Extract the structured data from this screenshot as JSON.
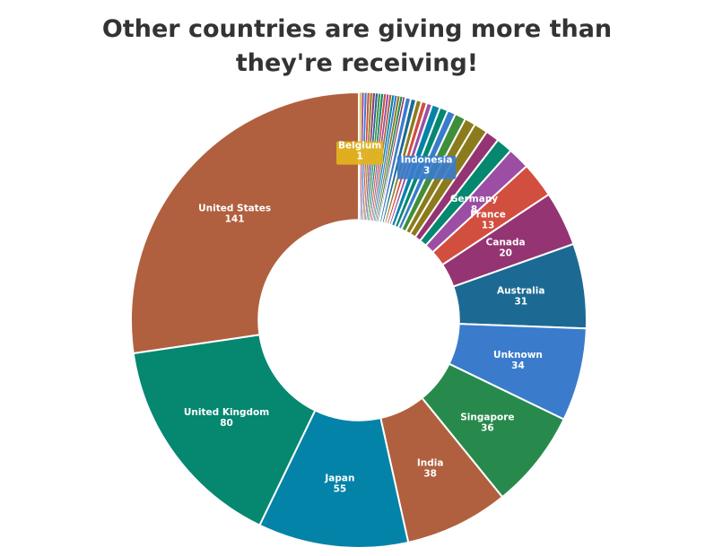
{
  "chart_data": {
    "type": "pie",
    "title": "Other countries are giving more than they're receiving!",
    "slices": [
      {
        "label": "United States",
        "value": 141,
        "color": "#b0603f",
        "show_label": true
      },
      {
        "label": "United Kingdom",
        "value": 80,
        "color": "#058770",
        "show_label": true
      },
      {
        "label": "Japan",
        "value": 55,
        "color": "#0383a8",
        "show_label": true
      },
      {
        "label": "India",
        "value": 38,
        "color": "#b0603f",
        "show_label": true
      },
      {
        "label": "Singapore",
        "value": 36,
        "color": "#278a4c",
        "show_label": true
      },
      {
        "label": "Unknown",
        "value": 34,
        "color": "#3a7ccb",
        "show_label": true
      },
      {
        "label": "Australia",
        "value": 31,
        "color": "#1c6a93",
        "show_label": true
      },
      {
        "label": "Canada",
        "value": 20,
        "color": "#943472",
        "show_label": true
      },
      {
        "label": "France",
        "value": 13,
        "color": "#d24e3e",
        "show_label": true
      },
      {
        "label": "Germany",
        "value": 8,
        "color": "#9b4ea4",
        "show_label": true
      },
      {
        "label": "",
        "value": 6,
        "color": "#058770",
        "show_label": false
      },
      {
        "label": "",
        "value": 5,
        "color": "#943472",
        "show_label": false
      },
      {
        "label": "",
        "value": 5,
        "color": "#8c7b1c",
        "show_label": false
      },
      {
        "label": "",
        "value": 4,
        "color": "#8c7b1c",
        "show_label": false
      },
      {
        "label": "",
        "value": 4,
        "color": "#3f8f3a",
        "show_label": false
      },
      {
        "label": "Indonesia",
        "value": 3,
        "color": "#3a7ccb",
        "show_label": true
      },
      {
        "label": "",
        "value": 3,
        "color": "#058770",
        "show_label": false
      },
      {
        "label": "",
        "value": 3,
        "color": "#0383a8",
        "show_label": false
      },
      {
        "label": "",
        "value": 2,
        "color": "#9b4ea4",
        "show_label": false
      },
      {
        "label": "",
        "value": 2,
        "color": "#d24e3e",
        "show_label": false
      },
      {
        "label": "",
        "value": 2,
        "color": "#8c7b1c",
        "show_label": false
      },
      {
        "label": "",
        "value": 2,
        "color": "#1c6a93",
        "show_label": false
      },
      {
        "label": "",
        "value": 2,
        "color": "#3a7ccb",
        "show_label": false
      },
      {
        "label": "",
        "value": 1,
        "color": "#943472",
        "show_label": false
      },
      {
        "label": "",
        "value": 1,
        "color": "#278a4c",
        "show_label": false
      },
      {
        "label": "",
        "value": 1,
        "color": "#8c7b1c",
        "show_label": false
      },
      {
        "label": "",
        "value": 1,
        "color": "#3a7ccb",
        "show_label": false
      },
      {
        "label": "",
        "value": 1,
        "color": "#0383a8",
        "show_label": false
      },
      {
        "label": "",
        "value": 1,
        "color": "#b0603f",
        "show_label": false
      },
      {
        "label": "",
        "value": 1,
        "color": "#9b4ea4",
        "show_label": false
      },
      {
        "label": "",
        "value": 1,
        "color": "#d24e3e",
        "show_label": false
      },
      {
        "label": "",
        "value": 1,
        "color": "#058770",
        "show_label": false
      },
      {
        "label": "",
        "value": 1,
        "color": "#3f8f3a",
        "show_label": false
      },
      {
        "label": "",
        "value": 1,
        "color": "#1c6a93",
        "show_label": false
      },
      {
        "label": "",
        "value": 1,
        "color": "#943472",
        "show_label": false
      },
      {
        "label": "",
        "value": 1,
        "color": "#8c7b1c",
        "show_label": false
      },
      {
        "label": "",
        "value": 1,
        "color": "#d24e3e",
        "show_label": false
      },
      {
        "label": "",
        "value": 1,
        "color": "#3a7ccb",
        "show_label": false
      },
      {
        "label": "",
        "value": 1,
        "color": "#9b4ea4",
        "show_label": false
      },
      {
        "label": "Belgium",
        "value": 1,
        "color": "#e3b41b",
        "show_label": true
      }
    ],
    "inner_radius_ratio": 0.44,
    "start": "top, clockwise from smallest slice",
    "legend": "none",
    "label_style": "white bold name and value inside slice; small slices use colored label box"
  }
}
